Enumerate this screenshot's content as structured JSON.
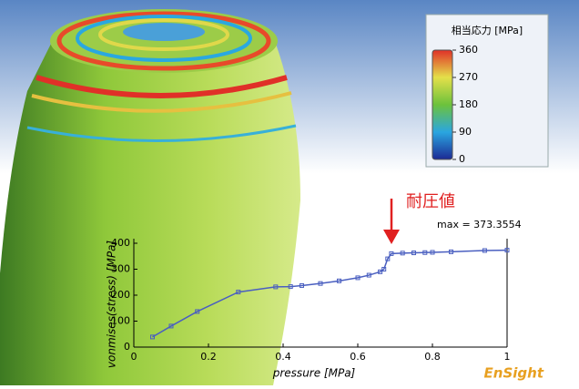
{
  "chart_data": [
    {
      "type": "line",
      "x_label": "pressure [MPa]",
      "y_label": "vonmises(stress) [MPa]",
      "x": [
        0.05,
        0.1,
        0.17,
        0.28,
        0.38,
        0.42,
        0.45,
        0.5,
        0.55,
        0.6,
        0.63,
        0.66,
        0.67,
        0.68,
        0.69,
        0.72,
        0.75,
        0.78,
        0.8,
        0.85,
        0.94,
        1
      ],
      "values": [
        39,
        81,
        137,
        212,
        232,
        233,
        237,
        245,
        255,
        267,
        277,
        290,
        300,
        340,
        360,
        362,
        363,
        364,
        365,
        367,
        372,
        373.3554
      ],
      "color": "#4a5fc0",
      "xlim": [
        0,
        1
      ],
      "xticks": [
        0,
        0.2,
        0.4,
        0.6,
        0.8,
        1
      ],
      "ylim": [
        0,
        400
      ],
      "yticks": [
        0,
        100,
        200,
        300,
        400
      ],
      "annotations": [
        "max = 373.3554",
        "耐圧値"
      ]
    },
    {
      "type": "colorbar",
      "title": "相当応力 [MPa]",
      "ylim": [
        0,
        360
      ],
      "yticks": [
        0,
        90,
        180,
        270,
        360
      ],
      "colors": [
        "#1c2a94",
        "#2aa6e0",
        "#6cc23c",
        "#e4e04a",
        "#e03028"
      ]
    }
  ],
  "logo": "EnSight"
}
